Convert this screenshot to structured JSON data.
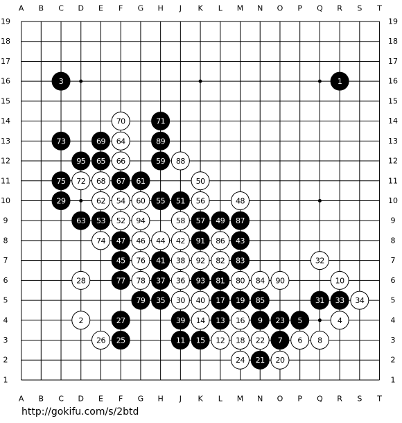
{
  "board": {
    "columns": [
      "A",
      "B",
      "C",
      "D",
      "E",
      "F",
      "G",
      "H",
      "J",
      "K",
      "L",
      "M",
      "N",
      "O",
      "P",
      "Q",
      "R",
      "S",
      "T"
    ],
    "rows": [
      19,
      18,
      17,
      16,
      15,
      14,
      13,
      12,
      11,
      10,
      9,
      8,
      7,
      6,
      5,
      4,
      3,
      2,
      1
    ],
    "stones": [
      {
        "label": "1",
        "color": "black",
        "col": "R",
        "row": 16
      },
      {
        "label": "2",
        "color": "white",
        "col": "D",
        "row": 4
      },
      {
        "label": "3",
        "color": "black",
        "col": "C",
        "row": 16
      },
      {
        "label": "4",
        "color": "white",
        "col": "R",
        "row": 4
      },
      {
        "label": "5",
        "color": "black",
        "col": "P",
        "row": 4
      },
      {
        "label": "6",
        "color": "white",
        "col": "P",
        "row": 3
      },
      {
        "label": "7",
        "color": "black",
        "col": "O",
        "row": 3
      },
      {
        "label": "8",
        "color": "white",
        "col": "Q",
        "row": 3
      },
      {
        "label": "9",
        "color": "black",
        "col": "N",
        "row": 4
      },
      {
        "label": "10",
        "color": "white",
        "col": "R",
        "row": 6
      },
      {
        "label": "11",
        "color": "black",
        "col": "J",
        "row": 3
      },
      {
        "label": "12",
        "color": "white",
        "col": "L",
        "row": 3
      },
      {
        "label": "13",
        "color": "black",
        "col": "L",
        "row": 4
      },
      {
        "label": "14",
        "color": "white",
        "col": "K",
        "row": 4
      },
      {
        "label": "15",
        "color": "black",
        "col": "K",
        "row": 3
      },
      {
        "label": "16",
        "color": "white",
        "col": "M",
        "row": 4
      },
      {
        "label": "17",
        "color": "black",
        "col": "L",
        "row": 5
      },
      {
        "label": "18",
        "color": "white",
        "col": "M",
        "row": 3
      },
      {
        "label": "19",
        "color": "black",
        "col": "M",
        "row": 5
      },
      {
        "label": "20",
        "color": "white",
        "col": "O",
        "row": 2
      },
      {
        "label": "21",
        "color": "black",
        "col": "N",
        "row": 2
      },
      {
        "label": "22",
        "color": "white",
        "col": "N",
        "row": 3
      },
      {
        "label": "23",
        "color": "black",
        "col": "O",
        "row": 4
      },
      {
        "label": "24",
        "color": "white",
        "col": "M",
        "row": 2
      },
      {
        "label": "25",
        "color": "black",
        "col": "F",
        "row": 3
      },
      {
        "label": "26",
        "color": "white",
        "col": "E",
        "row": 3
      },
      {
        "label": "27",
        "color": "black",
        "col": "F",
        "row": 4
      },
      {
        "label": "28",
        "color": "white",
        "col": "D",
        "row": 6
      },
      {
        "label": "29",
        "color": "black",
        "col": "C",
        "row": 10
      },
      {
        "label": "30",
        "color": "white",
        "col": "J",
        "row": 5
      },
      {
        "label": "31",
        "color": "black",
        "col": "Q",
        "row": 5
      },
      {
        "label": "32",
        "color": "white",
        "col": "Q",
        "row": 7
      },
      {
        "label": "33",
        "color": "black",
        "col": "R",
        "row": 5
      },
      {
        "label": "34",
        "color": "white",
        "col": "S",
        "row": 5
      },
      {
        "label": "35",
        "color": "black",
        "col": "H",
        "row": 5
      },
      {
        "label": "36",
        "color": "white",
        "col": "J",
        "row": 6
      },
      {
        "label": "37",
        "color": "black",
        "col": "H",
        "row": 6
      },
      {
        "label": "38",
        "color": "white",
        "col": "J",
        "row": 7
      },
      {
        "label": "39",
        "color": "black",
        "col": "J",
        "row": 4
      },
      {
        "label": "40",
        "color": "white",
        "col": "K",
        "row": 5
      },
      {
        "label": "41",
        "color": "black",
        "col": "H",
        "row": 7
      },
      {
        "label": "42",
        "color": "white",
        "col": "J",
        "row": 8
      },
      {
        "label": "43",
        "color": "black",
        "col": "M",
        "row": 8
      },
      {
        "label": "44",
        "color": "white",
        "col": "H",
        "row": 8
      },
      {
        "label": "45",
        "color": "black",
        "col": "F",
        "row": 7
      },
      {
        "label": "46",
        "color": "white",
        "col": "G",
        "row": 8
      },
      {
        "label": "47",
        "color": "black",
        "col": "F",
        "row": 8
      },
      {
        "label": "48",
        "color": "white",
        "col": "M",
        "row": 10
      },
      {
        "label": "49",
        "color": "black",
        "col": "L",
        "row": 9
      },
      {
        "label": "50",
        "color": "white",
        "col": "K",
        "row": 11
      },
      {
        "label": "51",
        "color": "black",
        "col": "J",
        "row": 10
      },
      {
        "label": "52",
        "color": "white",
        "col": "F",
        "row": 9
      },
      {
        "label": "53",
        "color": "black",
        "col": "E",
        "row": 9
      },
      {
        "label": "54",
        "color": "white",
        "col": "F",
        "row": 10
      },
      {
        "label": "55",
        "color": "black",
        "col": "H",
        "row": 10
      },
      {
        "label": "56",
        "color": "white",
        "col": "K",
        "row": 10
      },
      {
        "label": "57",
        "color": "black",
        "col": "K",
        "row": 9
      },
      {
        "label": "58",
        "color": "white",
        "col": "J",
        "row": 9
      },
      {
        "label": "59",
        "color": "black",
        "col": "H",
        "row": 12
      },
      {
        "label": "60",
        "color": "white",
        "col": "G",
        "row": 10
      },
      {
        "label": "61",
        "color": "black",
        "col": "G",
        "row": 11
      },
      {
        "label": "62",
        "color": "white",
        "col": "E",
        "row": 10
      },
      {
        "label": "63",
        "color": "black",
        "col": "D",
        "row": 9
      },
      {
        "label": "64",
        "color": "white",
        "col": "F",
        "row": 13
      },
      {
        "label": "65",
        "color": "black",
        "col": "E",
        "row": 12
      },
      {
        "label": "66",
        "color": "white",
        "col": "F",
        "row": 12
      },
      {
        "label": "67",
        "color": "black",
        "col": "F",
        "row": 11
      },
      {
        "label": "68",
        "color": "white",
        "col": "E",
        "row": 11
      },
      {
        "label": "69",
        "color": "black",
        "col": "E",
        "row": 13
      },
      {
        "label": "70",
        "color": "white",
        "col": "F",
        "row": 14
      },
      {
        "label": "71",
        "color": "black",
        "col": "H",
        "row": 14
      },
      {
        "label": "72",
        "color": "white",
        "col": "D",
        "row": 11
      },
      {
        "label": "73",
        "color": "black",
        "col": "C",
        "row": 13
      },
      {
        "label": "74",
        "color": "white",
        "col": "E",
        "row": 8
      },
      {
        "label": "75",
        "color": "black",
        "col": "C",
        "row": 11
      },
      {
        "label": "76",
        "color": "white",
        "col": "G",
        "row": 7
      },
      {
        "label": "77",
        "color": "black",
        "col": "F",
        "row": 6
      },
      {
        "label": "78",
        "color": "white",
        "col": "G",
        "row": 6
      },
      {
        "label": "79",
        "color": "black",
        "col": "G",
        "row": 5
      },
      {
        "label": "80",
        "color": "white",
        "col": "M",
        "row": 6
      },
      {
        "label": "81",
        "color": "black",
        "col": "L",
        "row": 6
      },
      {
        "label": "82",
        "color": "white",
        "col": "L",
        "row": 7
      },
      {
        "label": "83",
        "color": "black",
        "col": "M",
        "row": 7
      },
      {
        "label": "84",
        "color": "white",
        "col": "N",
        "row": 6
      },
      {
        "label": "85",
        "color": "black",
        "col": "N",
        "row": 5
      },
      {
        "label": "86",
        "color": "white",
        "col": "L",
        "row": 8
      },
      {
        "label": "87",
        "color": "black",
        "col": "M",
        "row": 9
      },
      {
        "label": "88",
        "color": "white",
        "col": "J",
        "row": 12
      },
      {
        "label": "89",
        "color": "black",
        "col": "H",
        "row": 13
      },
      {
        "label": "90",
        "color": "white",
        "col": "O",
        "row": 6
      },
      {
        "label": "91",
        "color": "black",
        "col": "K",
        "row": 8
      },
      {
        "label": "92",
        "color": "white",
        "col": "K",
        "row": 7
      },
      {
        "label": "93",
        "color": "black",
        "col": "K",
        "row": 6
      },
      {
        "label": "94",
        "color": "white",
        "col": "G",
        "row": 9
      },
      {
        "label": "95",
        "color": "black",
        "col": "D",
        "row": 12
      }
    ]
  },
  "footer": {
    "url": "http://gokifu.com/s/2btd"
  }
}
